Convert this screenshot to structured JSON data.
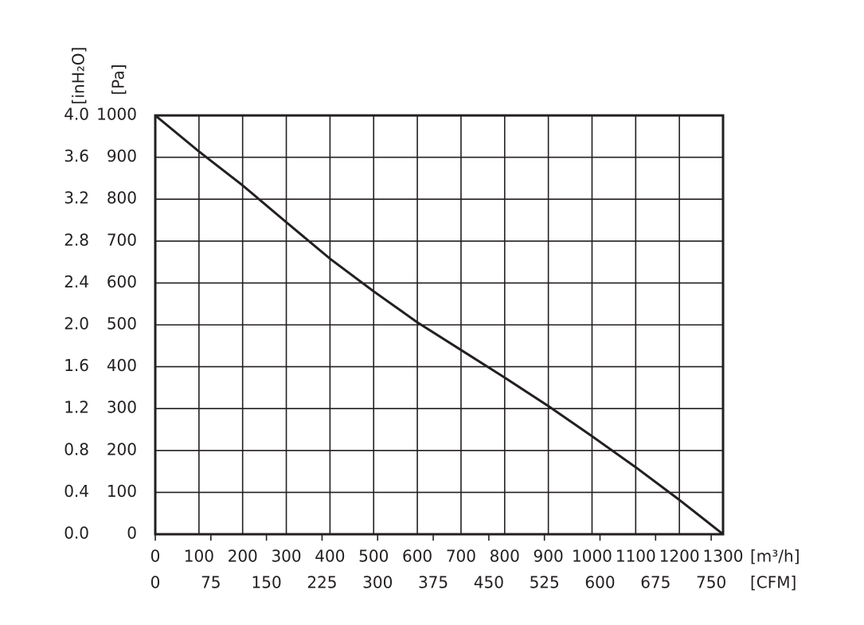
{
  "chart_data": {
    "type": "line",
    "x": [
      0,
      100,
      200,
      300,
      400,
      500,
      600,
      700,
      800,
      900,
      1000,
      1100,
      1200,
      1300
    ],
    "values": [
      1000,
      914,
      833,
      745,
      658,
      580,
      506,
      440,
      374,
      306,
      234,
      160,
      82,
      0
    ],
    "color": "#231f20",
    "xlim": [
      0,
      1300
    ],
    "xticks": [
      0,
      100,
      200,
      300,
      400,
      500,
      600,
      700,
      800,
      900,
      1000,
      1100,
      1200,
      1300
    ],
    "xlabel": "[m³/h]",
    "x2lim": [
      0,
      766
    ],
    "x2ticks": [
      0,
      75,
      150,
      225,
      300,
      375,
      450,
      525,
      600,
      675,
      750
    ],
    "x2label": "[CFM]",
    "ylim": [
      0,
      1000
    ],
    "yticks": [
      0,
      100,
      200,
      300,
      400,
      500,
      600,
      700,
      800,
      900,
      1000
    ],
    "ylabel": "[Pa]",
    "y2lim": [
      0,
      4
    ],
    "y2ticks": [
      {
        "value": 0,
        "label": "0.0"
      },
      0.4,
      0.8,
      1.2,
      1.6,
      {
        "value": 2,
        "label": "2.0"
      },
      2.4,
      2.8,
      3.2,
      3.6,
      {
        "value": 4,
        "label": "4.0"
      }
    ],
    "y2label": "[inH₂O]",
    "grid": true
  }
}
